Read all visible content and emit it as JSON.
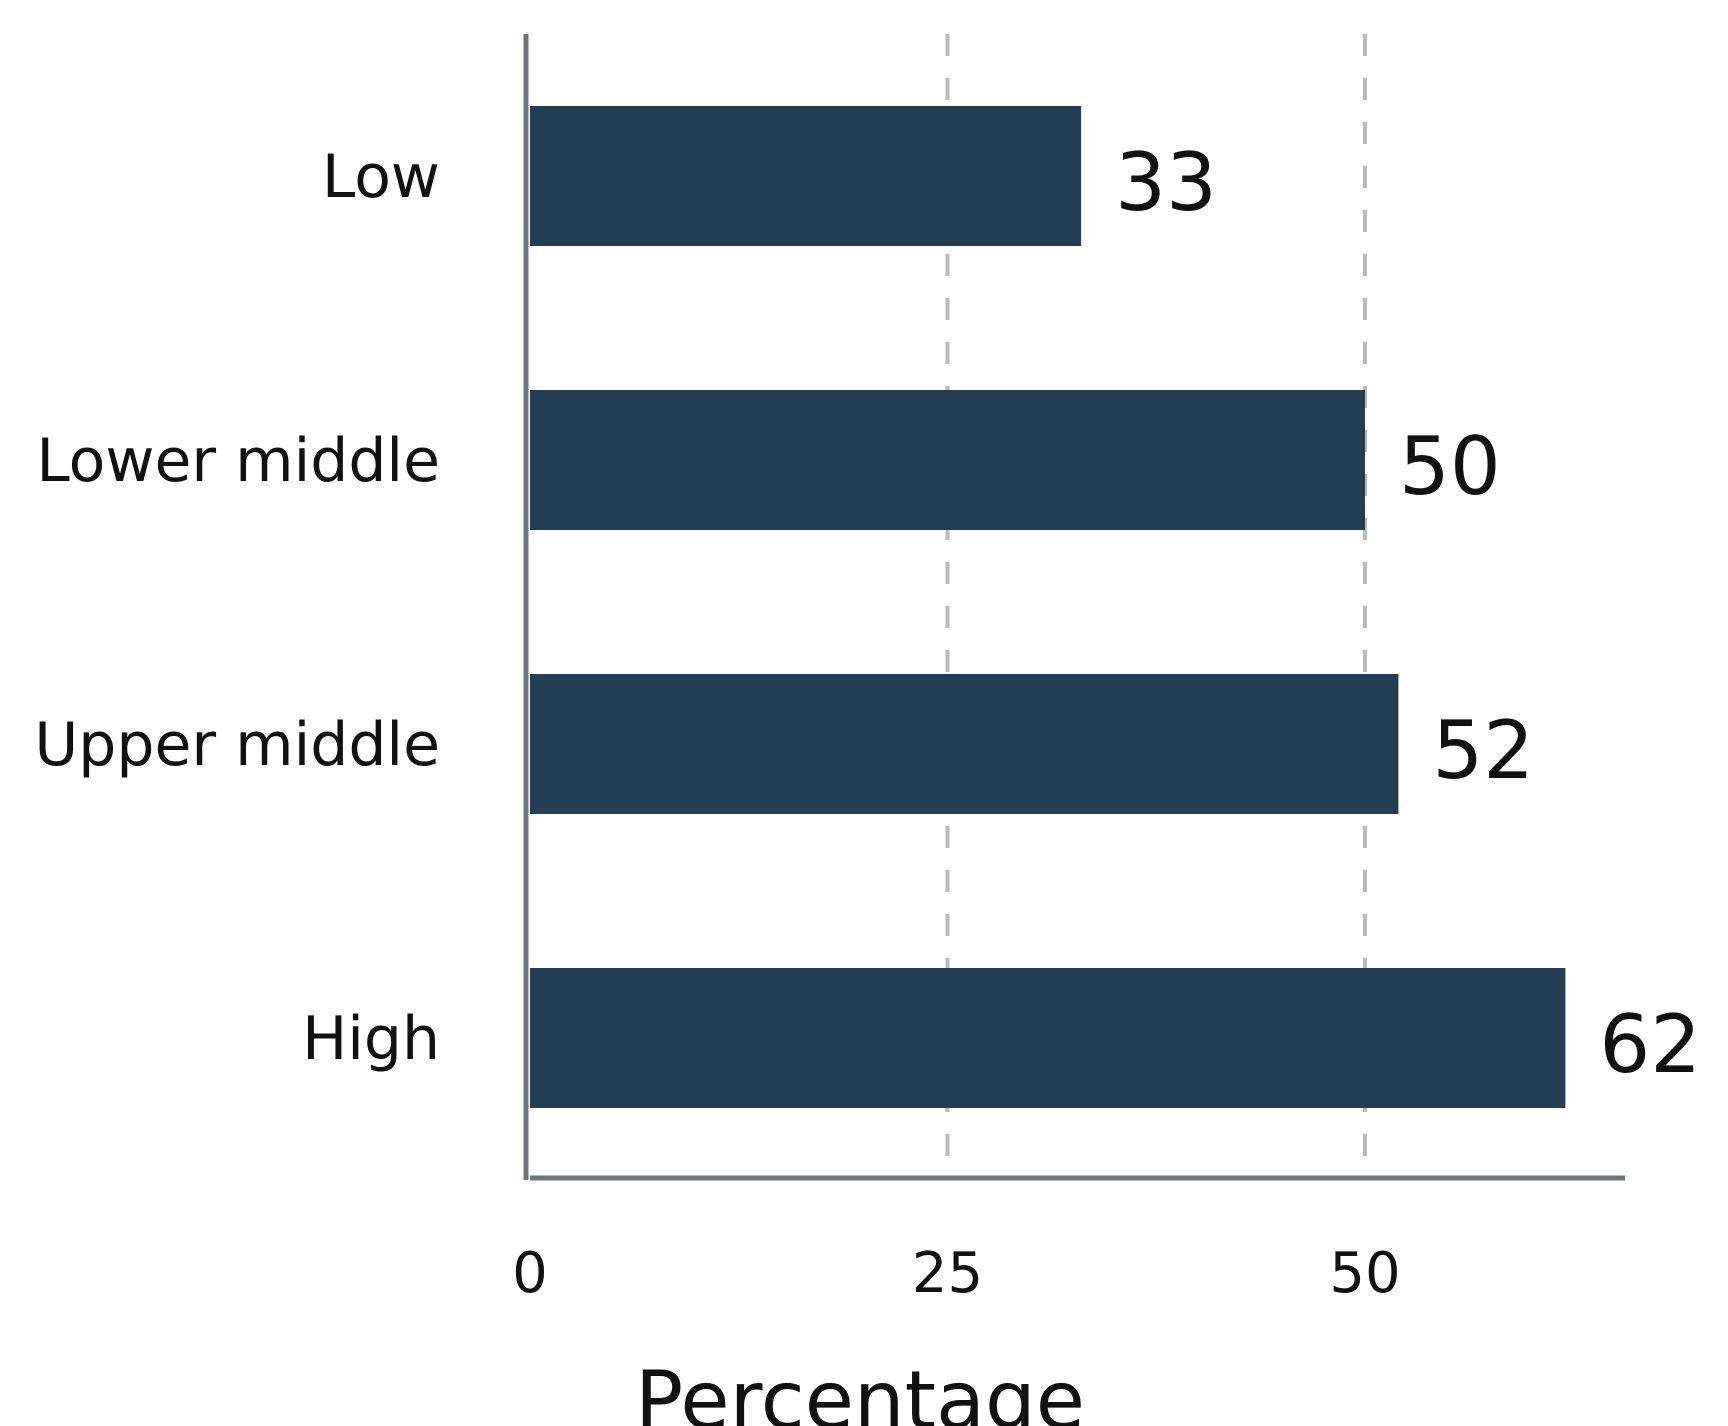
{
  "chart_data": {
    "type": "bar",
    "orientation": "horizontal",
    "categories": [
      "Low",
      "Lower middle",
      "Upper middle",
      "High"
    ],
    "values": [
      33,
      50,
      52,
      62
    ],
    "xlabel": "Percentage",
    "ylabel": "",
    "xlim": [
      0,
      66
    ],
    "xticks": [
      "0",
      "25",
      "50"
    ],
    "xtick_values": [
      0,
      25,
      50
    ],
    "grid": "vertical dashed",
    "bar_color": "#233d53",
    "grid_color": "#b8babd",
    "axis_color": "#6e757c"
  }
}
